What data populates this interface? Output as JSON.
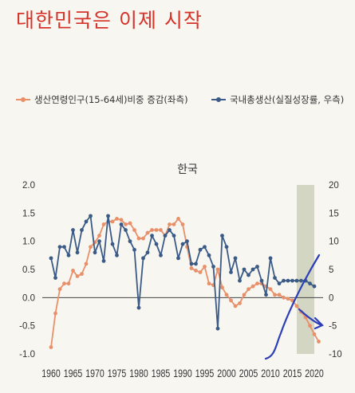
{
  "title": "대한민국은 이제 시작",
  "legend": [
    {
      "label": "생산연령인구(15-64세)비중 증감(좌측)",
      "color": "#e8906a"
    },
    {
      "label": "국내총생산(실질성장률, 우측)",
      "color": "#3b5a86"
    }
  ],
  "chart_data": {
    "type": "line",
    "title": "한국",
    "xlabel": "",
    "ylabel_left": "",
    "ylabel_right": "",
    "xlim": [
      1958,
      2022
    ],
    "ylim_left": [
      -1.0,
      2.0
    ],
    "ylim_right": [
      -10,
      20
    ],
    "x_ticks": [
      1960,
      1965,
      1970,
      1975,
      1980,
      1985,
      1990,
      1995,
      2000,
      2005,
      2010,
      2015,
      2020
    ],
    "y_ticks_left": [
      "2.0",
      "1.5",
      "1.0",
      "0.5",
      "0.0",
      "-0.5",
      "-1.0"
    ],
    "y_ticks_right": [
      "20",
      "15",
      "10",
      "5",
      "0",
      "-5",
      "-10"
    ],
    "shaded_region": {
      "x_start": 2016,
      "x_end": 2020,
      "color": "#c5cbb2"
    },
    "grid": false,
    "legend_position": "top",
    "series": [
      {
        "name": "생산연령인구(15-64세)비중 증감(좌측)",
        "axis": "left",
        "color": "#e8906a",
        "x": [
          1960,
          1961,
          1962,
          1963,
          1964,
          1965,
          1966,
          1967,
          1968,
          1969,
          1970,
          1971,
          1972,
          1973,
          1974,
          1975,
          1976,
          1977,
          1978,
          1979,
          1980,
          1981,
          1982,
          1983,
          1984,
          1985,
          1986,
          1987,
          1988,
          1989,
          1990,
          1991,
          1992,
          1993,
          1994,
          1995,
          1996,
          1997,
          1998,
          1999,
          2000,
          2001,
          2002,
          2003,
          2004,
          2005,
          2006,
          2007,
          2008,
          2009,
          2010,
          2011,
          2012,
          2013,
          2014,
          2015,
          2016,
          2017,
          2018,
          2019,
          2020,
          2021
        ],
        "values": [
          -0.88,
          -0.28,
          0.15,
          0.25,
          0.25,
          0.48,
          0.38,
          0.42,
          0.6,
          0.9,
          0.98,
          1.1,
          1.3,
          1.35,
          1.35,
          1.4,
          1.38,
          1.3,
          1.32,
          1.2,
          1.05,
          1.05,
          1.15,
          1.2,
          1.2,
          1.2,
          1.1,
          1.3,
          1.3,
          1.4,
          1.3,
          0.9,
          0.52,
          0.48,
          0.45,
          0.55,
          0.25,
          0.22,
          0.5,
          0.18,
          0.05,
          -0.05,
          -0.15,
          -0.1,
          0.05,
          0.15,
          0.2,
          0.25,
          0.25,
          0.2,
          0.15,
          0.05,
          0.05,
          0.0,
          -0.02,
          -0.05,
          -0.15,
          -0.25,
          -0.35,
          -0.5,
          -0.65,
          -0.78
        ]
      },
      {
        "name": "국내총생산(실질성장률, 우측)",
        "axis": "right",
        "color": "#3b5a86",
        "x": [
          1960,
          1961,
          1962,
          1963,
          1964,
          1965,
          1966,
          1967,
          1968,
          1969,
          1970,
          1971,
          1972,
          1973,
          1974,
          1975,
          1976,
          1977,
          1978,
          1979,
          1980,
          1981,
          1982,
          1983,
          1984,
          1985,
          1986,
          1987,
          1988,
          1989,
          1990,
          1991,
          1992,
          1993,
          1994,
          1995,
          1996,
          1997,
          1998,
          1999,
          2000,
          2001,
          2002,
          2003,
          2004,
          2005,
          2006,
          2007,
          2008,
          2009,
          2010,
          2011,
          2012,
          2013,
          2014,
          2015,
          2016,
          2017,
          2018,
          2019,
          2020
        ],
        "values": [
          7,
          3.5,
          9,
          9,
          7.5,
          12,
          8,
          12,
          13.5,
          14.5,
          8,
          10,
          6.5,
          14.5,
          9.5,
          7.5,
          13,
          12,
          10,
          8.5,
          -1.8,
          7,
          8,
          11,
          9.5,
          7.5,
          11,
          12,
          11,
          7,
          9.5,
          10,
          6,
          6,
          8.5,
          9,
          7.5,
          5.5,
          -5.5,
          11,
          9,
          4.5,
          7,
          3,
          5,
          4,
          5,
          5.5,
          3,
          0.5,
          7,
          3.5,
          2.5,
          3,
          3,
          3,
          3,
          3,
          3,
          2.5,
          2
        ]
      }
    ]
  }
}
